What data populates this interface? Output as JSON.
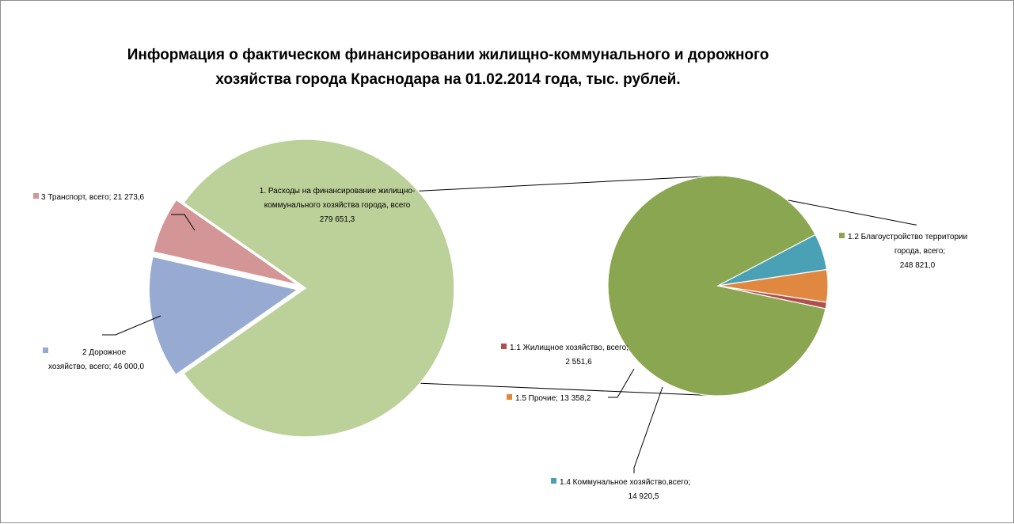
{
  "chart_data": {
    "type": "pie",
    "subtype": "pie-of-pie",
    "title_lines": [
      "Информация о фактическом финансировании жилищно-коммунального и дорожного",
      "хозяйства города Краснодара на 01.02.2014 года, тыс. рублей."
    ],
    "primary": {
      "slices": [
        {
          "name": "1. Расходы на финансирование жилищно-коммунального  хозяйства города, всего",
          "value": 279651.3,
          "label_lines": [
            "1. Расходы на финансирование жилищно-",
            "коммунального  хозяйства города, всего",
            "279 651,3"
          ],
          "color": "#bcd19a",
          "split": true
        },
        {
          "name": "2 Дорожное хозяйство, всего",
          "value": 46000.0,
          "label_lines": [
            "2 Дорожное",
            "хозяйство, всего; 46 000,0"
          ],
          "color": "#97abd2"
        },
        {
          "name": "3 Транспорт, всего",
          "value": 21273.6,
          "label_lines": [
            "3 Транспорт, всего; 21 273,6"
          ],
          "color": "#d49596"
        }
      ]
    },
    "secondary": {
      "slices": [
        {
          "name": "1.2 Благоустройство территории города, всего",
          "value": 248821.0,
          "label_lines": [
            "1.2 Благоустройство территории",
            "города, всего;",
            "248 821,0"
          ],
          "color": "#8ba651"
        },
        {
          "name": "1.4 Коммунальное хозяйство,всего",
          "value": 14920.5,
          "label_lines": [
            "1.4 Коммунальное хозяйство,всего;",
            "14 920,5"
          ],
          "color": "#4aa0b4"
        },
        {
          "name": "1.5 Прочие",
          "value": 13358.2,
          "label_lines": [
            "1.5 Прочие; 13 358,2"
          ],
          "color": "#e0883f"
        },
        {
          "name": "1.1 Жилищное хозяйство, всего",
          "value": 2551.6,
          "label_lines": [
            "1.1 Жилищное хозяйство, всего;",
            "2 551,6"
          ],
          "color": "#b04f4c"
        }
      ]
    },
    "legend": "none"
  }
}
